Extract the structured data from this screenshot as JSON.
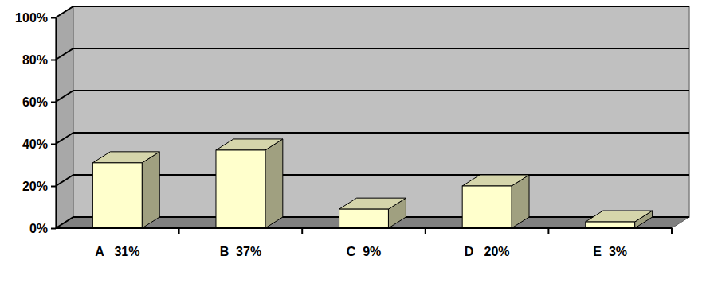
{
  "chart_data": {
    "type": "bar",
    "categories": [
      "A   31%",
      "B  37%",
      "C  9%",
      "D   20%",
      "E  3%"
    ],
    "values": [
      31,
      37,
      9,
      20,
      3
    ],
    "color": "#ffffcc",
    "ylim": [
      0,
      100
    ],
    "yticks": [
      {
        "value": 0,
        "label": "0%"
      },
      {
        "value": 20,
        "label": "20%"
      },
      {
        "value": 40,
        "label": "40%"
      },
      {
        "value": 60,
        "label": "60%"
      },
      {
        "value": 80,
        "label": "80%"
      },
      {
        "value": 100,
        "label": "100%"
      }
    ],
    "grid": true
  }
}
